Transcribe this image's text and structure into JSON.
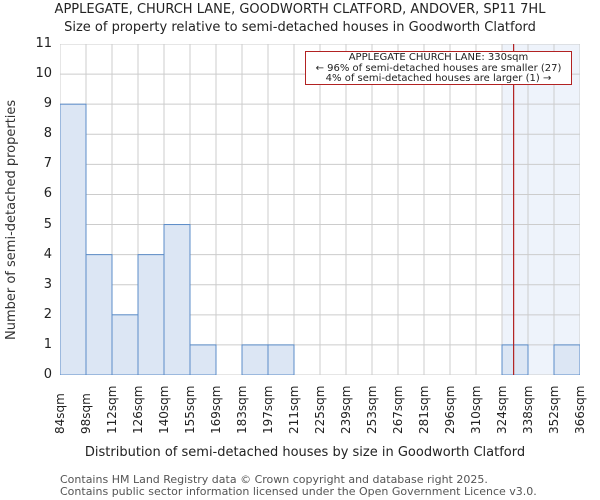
{
  "header": {
    "title": "APPLEGATE, CHURCH LANE, GOODWORTH CLATFORD, ANDOVER, SP11 7HL",
    "subtitle": "Size of property relative to semi-detached houses in Goodworth Clatford"
  },
  "annotation": {
    "line1": "APPLEGATE CHURCH LANE: 330sqm",
    "line2": "← 96% of semi-detached houses are smaller (27)",
    "line3": "4% of semi-detached houses are larger (1) →"
  },
  "footer": {
    "line1": "Contains HM Land Registry data © Crown copyright and database right 2025.",
    "line2": "Contains public sector information licensed under the Open Government Licence v3.0."
  },
  "colors": {
    "bar_fill": "#dce6f4",
    "bar_edge": "#5b8cc8",
    "highlight_region": "#eef3fb",
    "marker_line": "#b22222",
    "grid": "#cccccc"
  },
  "chart_data": {
    "type": "bar",
    "title": "APPLEGATE, CHURCH LANE, GOODWORTH CLATFORD, ANDOVER, SP11 7HL",
    "subtitle": "Size of property relative to semi-detached houses in Goodworth Clatford",
    "xlabel": "Distribution of semi-detached houses by size in Goodworth Clatford",
    "ylabel": "Number of semi-detached properties",
    "categories": [
      "84sqm",
      "98sqm",
      "112sqm",
      "126sqm",
      "140sqm",
      "155sqm",
      "169sqm",
      "183sqm",
      "197sqm",
      "211sqm",
      "225sqm",
      "239sqm",
      "253sqm",
      "267sqm",
      "281sqm",
      "296sqm",
      "310sqm",
      "324sqm",
      "338sqm",
      "352sqm",
      "366sqm"
    ],
    "values": [
      9,
      4,
      2,
      4,
      5,
      1,
      0,
      1,
      1,
      0,
      0,
      0,
      0,
      0,
      0,
      0,
      0,
      1,
      0,
      1
    ],
    "yticks": [
      0,
      1,
      2,
      3,
      4,
      5,
      6,
      7,
      8,
      9,
      10,
      11
    ],
    "ylim": [
      0,
      11
    ],
    "grid": true,
    "marker": {
      "value": 330,
      "label": "APPLEGATE CHURCH LANE: 330sqm"
    }
  }
}
